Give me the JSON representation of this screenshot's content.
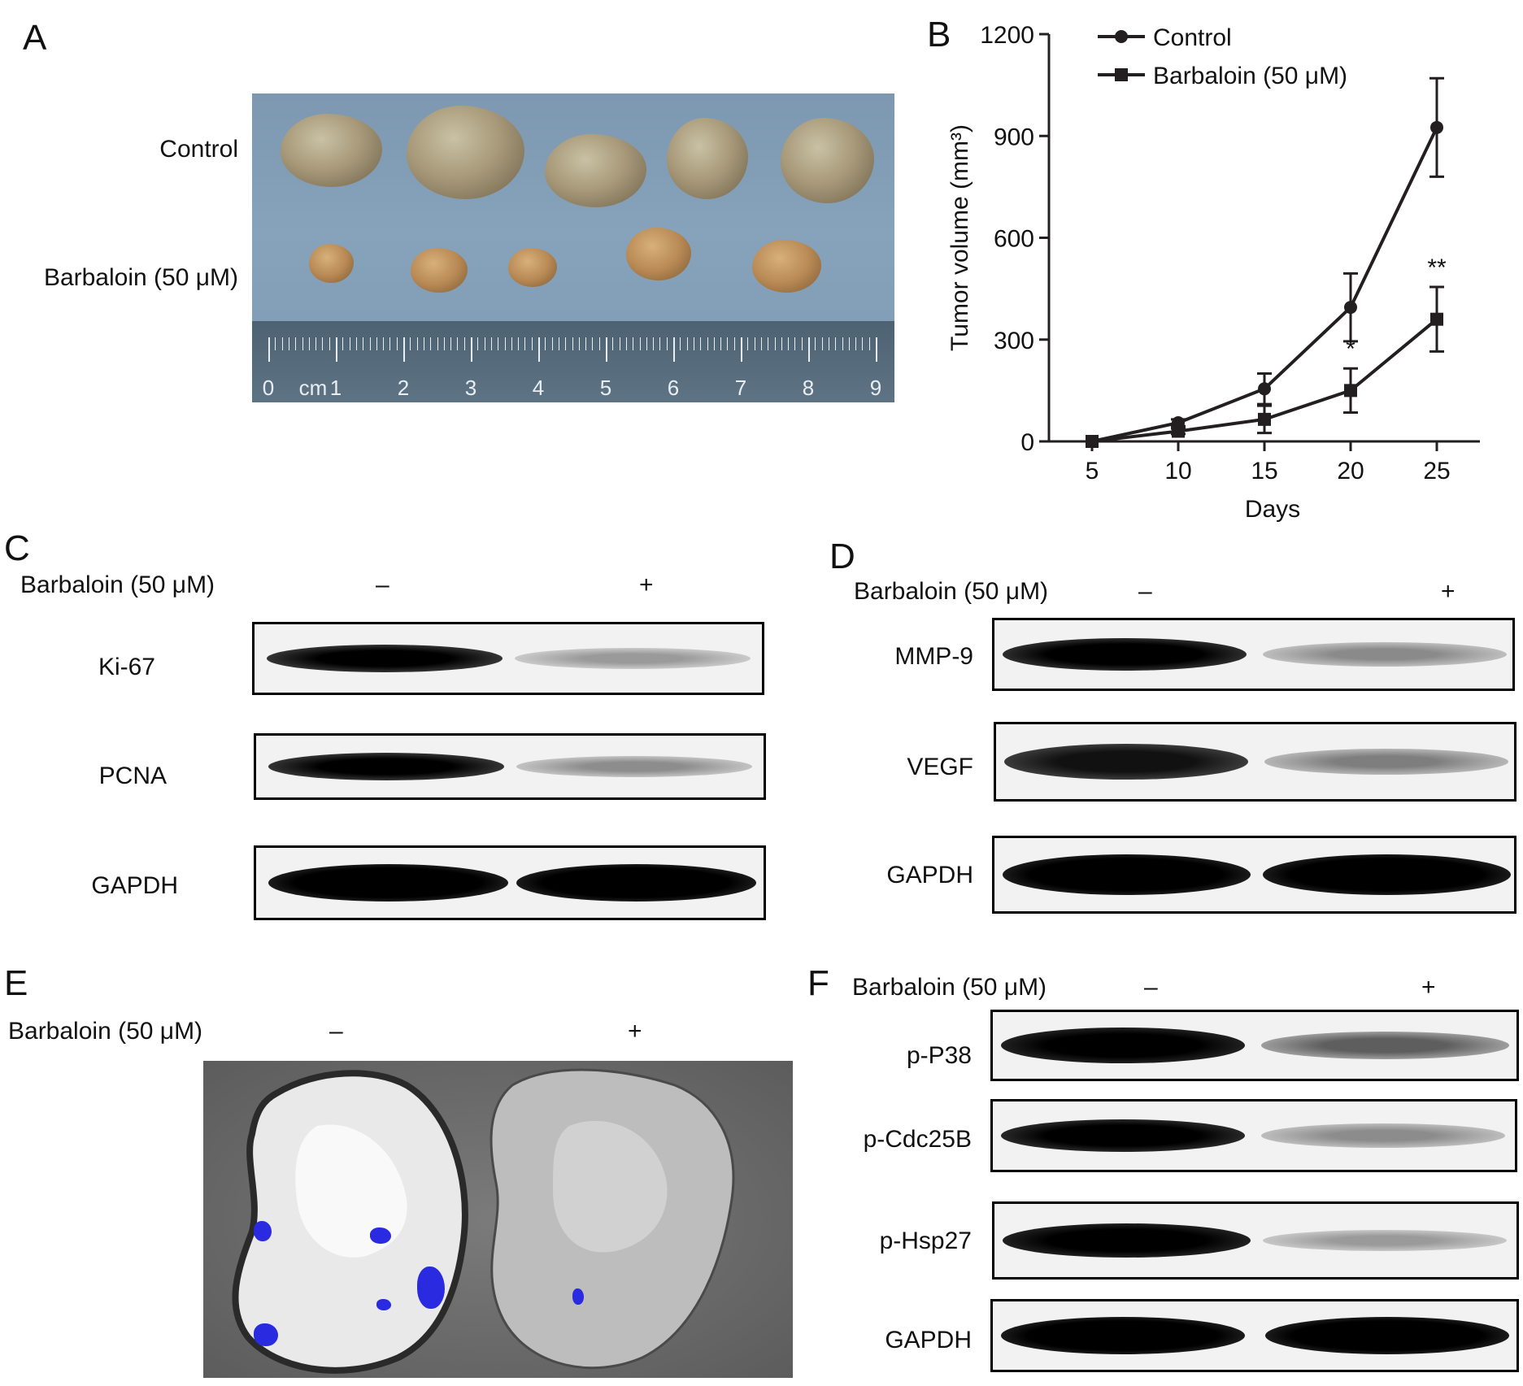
{
  "panels": {
    "A": {
      "letter": "A",
      "row_labels": [
        "Control",
        "Barbaloin (50 μM)"
      ],
      "ruler_unit": "cm",
      "ruler_numbers": [
        "0",
        "1",
        "2",
        "3",
        "4",
        "5",
        "6",
        "7",
        "8",
        "9"
      ]
    },
    "B": {
      "letter": "B",
      "significance_marks": [
        "*",
        "**"
      ]
    },
    "C": {
      "letter": "C",
      "treatment_label": "Barbaloin (50 μM)",
      "minus": "–",
      "plus": "+",
      "bands": [
        "Ki-67",
        "PCNA",
        "GAPDH"
      ]
    },
    "D": {
      "letter": "D",
      "treatment_label": "Barbaloin (50 μM)",
      "minus": "–",
      "plus": "+",
      "bands": [
        "MMP-9",
        "VEGF",
        "GAPDH"
      ]
    },
    "E": {
      "letter": "E",
      "treatment_label": "Barbaloin (50 μM)",
      "minus": "–",
      "plus": "+"
    },
    "F": {
      "letter": "F",
      "treatment_label": "Barbaloin (50 μM)",
      "minus": "–",
      "plus": "+",
      "bands": [
        "p-P38",
        "p-Cdc25B",
        "p-Hsp27",
        "GAPDH"
      ]
    }
  },
  "chart_data": {
    "type": "line",
    "title": "",
    "xlabel": "Days",
    "ylabel": "Tumor volume (mm³)",
    "x": [
      5,
      10,
      15,
      20,
      25
    ],
    "xticks": [
      "5",
      "10",
      "15",
      "20",
      "25"
    ],
    "yticks": [
      "0",
      "300",
      "600",
      "900",
      "1200"
    ],
    "ylim": [
      0,
      1200
    ],
    "xlim": [
      2.5,
      27.5
    ],
    "grid": false,
    "legend_position": "top-left",
    "series": [
      {
        "name": "Control",
        "marker": "circle",
        "values": [
          0,
          55,
          155,
          395,
          925
        ],
        "errors": [
          0,
          10,
          45,
          100,
          145
        ]
      },
      {
        "name": "Barbaloin (50 μM)",
        "marker": "square",
        "values": [
          0,
          30,
          65,
          150,
          360
        ],
        "errors": [
          0,
          8,
          40,
          65,
          95
        ]
      }
    ],
    "annotations": [
      {
        "x": 20,
        "text": "*"
      },
      {
        "x": 25,
        "text": "**"
      }
    ]
  },
  "colors": {
    "line": "#231f20",
    "blue_signal": "#2a2ae0",
    "photo_background": "#7d98b0"
  }
}
